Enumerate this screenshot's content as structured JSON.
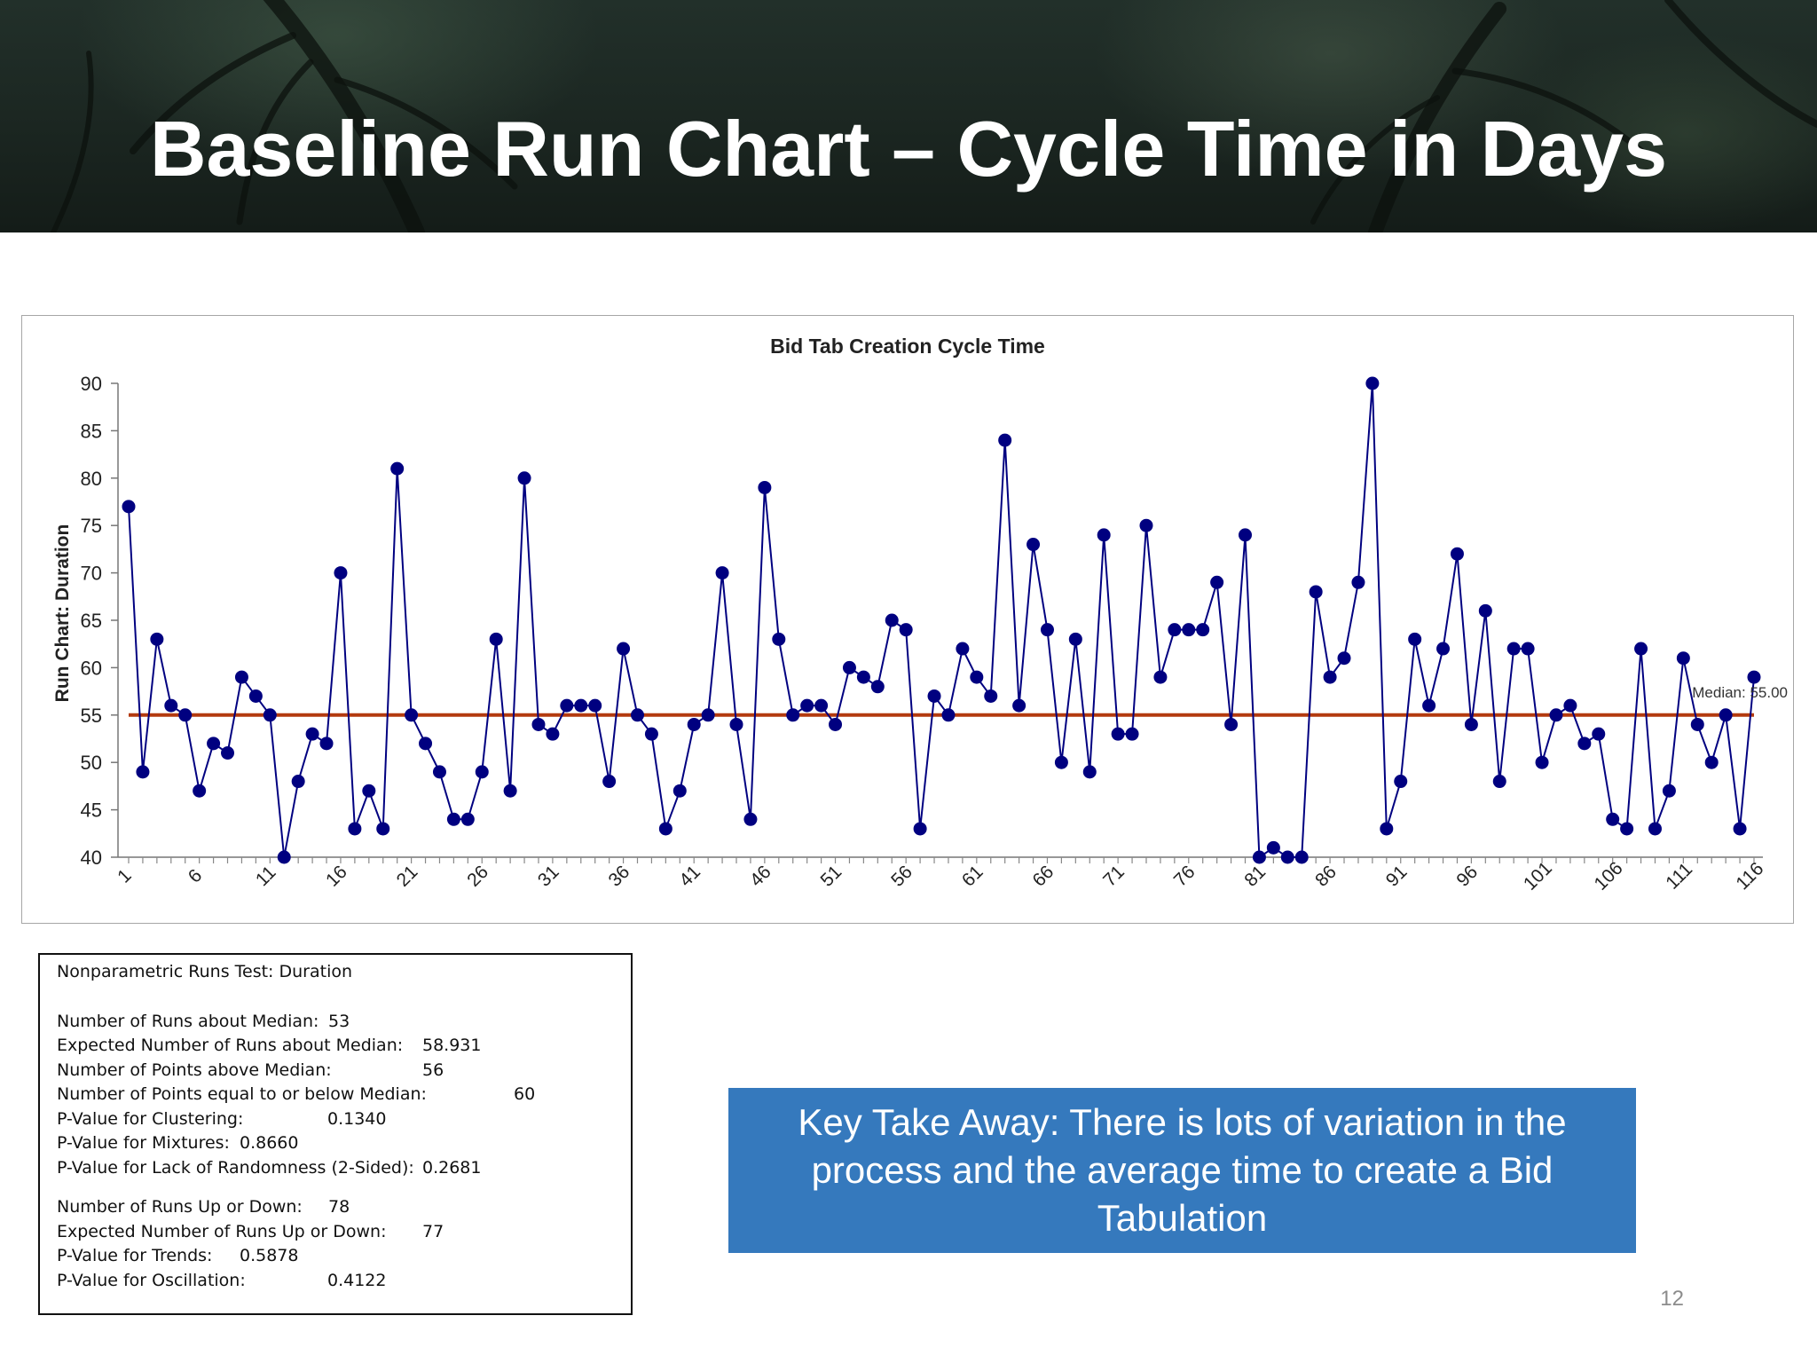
{
  "slide": {
    "title": "Baseline Run Chart – Cycle Time in Days",
    "page_number": "12"
  },
  "chart_data": {
    "type": "line",
    "title": "Bid Tab Creation Cycle Time",
    "ylabel": "Run Chart: Duration",
    "xlabel": "",
    "ylim": [
      40,
      90
    ],
    "yticks": [
      40,
      45,
      50,
      55,
      60,
      65,
      70,
      75,
      80,
      85,
      90
    ],
    "xtick_labels": [
      "1",
      "6",
      "11",
      "16",
      "21",
      "26",
      "31",
      "36",
      "41",
      "46",
      "51",
      "56",
      "61",
      "66",
      "71",
      "76",
      "81",
      "86",
      "91",
      "96",
      "101",
      "106",
      "111",
      "116"
    ],
    "line_color": "#000080",
    "median_color": "#b33a0f",
    "median": 55.0,
    "median_label": "Median: 55.00",
    "grid": false,
    "x": [
      1,
      2,
      3,
      4,
      5,
      6,
      7,
      8,
      9,
      10,
      11,
      12,
      13,
      14,
      15,
      16,
      17,
      18,
      19,
      20,
      21,
      22,
      23,
      24,
      25,
      26,
      27,
      28,
      29,
      30,
      31,
      32,
      33,
      34,
      35,
      36,
      37,
      38,
      39,
      40,
      41,
      42,
      43,
      44,
      45,
      46,
      47,
      48,
      49,
      50,
      51,
      52,
      53,
      54,
      55,
      56,
      57,
      58,
      59,
      60,
      61,
      62,
      63,
      64,
      65,
      66,
      67,
      68,
      69,
      70,
      71,
      72,
      73,
      74,
      75,
      76,
      77,
      78,
      79,
      80,
      81,
      82,
      83,
      84,
      85,
      86,
      87,
      88,
      89,
      90,
      91,
      92,
      93,
      94,
      95,
      96,
      97,
      98,
      99,
      100,
      101,
      102,
      103,
      104,
      105,
      106,
      107,
      108,
      109,
      110,
      111,
      112,
      113,
      114,
      115,
      116
    ],
    "series": [
      {
        "values": [
          77,
          49,
          63,
          56,
          55,
          47,
          52,
          51,
          59,
          57,
          55,
          40,
          48,
          53,
          52,
          70,
          43,
          47,
          43,
          81,
          55,
          52,
          49,
          44,
          44,
          49,
          63,
          47,
          80,
          54,
          53,
          56,
          56,
          56,
          48,
          62,
          55,
          53,
          43,
          47,
          54,
          55,
          70,
          54,
          44,
          79,
          63,
          55,
          56,
          56,
          54,
          60,
          59,
          58,
          65,
          64,
          43,
          57,
          55,
          62,
          59,
          57,
          84,
          56,
          73,
          64,
          50,
          63,
          49,
          74,
          53,
          53,
          75,
          59,
          64,
          64,
          64,
          69,
          54,
          74,
          40,
          41,
          40,
          40,
          68,
          59,
          61,
          69,
          90,
          43,
          48,
          63,
          56,
          62,
          72,
          54,
          66,
          48,
          62,
          62,
          50,
          55,
          56,
          52,
          53,
          44,
          43,
          62,
          43,
          47,
          61,
          54,
          50,
          55,
          43,
          59
        ]
      }
    ]
  },
  "stats_box": {
    "heading": "Nonparametric Runs Test:  Duration",
    "rows": [
      {
        "label": "Number of Runs about Median:",
        "value": "53"
      },
      {
        "label": "Expected Number of Runs about Median:",
        "value": "58.931"
      },
      {
        "label": "Number of Points above Median:",
        "value": "56"
      },
      {
        "label": "Number of Points equal to or below Median:",
        "value": "60"
      },
      {
        "label": "P-Value for Clustering:",
        "value": "0.1340"
      },
      {
        "label": "P-Value for Mixtures:",
        "value": "0.8660"
      },
      {
        "label": "P-Value for Lack of Randomness (2-Sided):",
        "value": "0.2681"
      },
      {
        "label": "Number of Runs Up or Down:",
        "value": "78"
      },
      {
        "label": "Expected Number of Runs Up or Down:",
        "value": "77"
      },
      {
        "label": "P-Value for Trends:",
        "value": "0.5878"
      },
      {
        "label": "P-Value for Oscillation:",
        "value": "0.4122"
      }
    ]
  },
  "takeaway": {
    "text": "Key Take Away: There is lots of variation in the process and the average time to create a Bid Tabulation"
  }
}
